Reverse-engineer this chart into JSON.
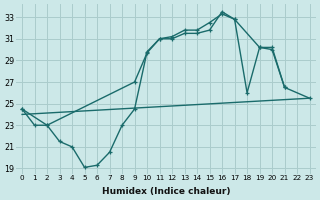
{
  "xlabel": "Humidex (Indice chaleur)",
  "background_color": "#cce8e8",
  "grid_color": "#aacccc",
  "line_color": "#1a6b6b",
  "xlim": [
    -0.5,
    23.5
  ],
  "ylim": [
    18.5,
    34.2
  ],
  "xticks": [
    0,
    1,
    2,
    3,
    4,
    5,
    6,
    7,
    8,
    9,
    10,
    11,
    12,
    13,
    14,
    15,
    16,
    17,
    18,
    19,
    20,
    21,
    22,
    23
  ],
  "yticks": [
    19,
    21,
    23,
    25,
    27,
    29,
    31,
    33
  ],
  "line1_x": [
    0,
    1,
    2,
    3,
    4,
    5,
    6,
    7,
    8,
    9,
    10,
    11,
    12,
    13,
    14,
    15,
    16,
    17,
    18,
    19,
    20,
    21
  ],
  "line1_y": [
    24.5,
    23.0,
    23.0,
    21.5,
    21.0,
    19.1,
    19.3,
    20.5,
    23.0,
    24.5,
    29.8,
    31.0,
    31.0,
    31.5,
    31.5,
    31.8,
    33.5,
    32.8,
    26.0,
    30.2,
    30.2,
    26.5
  ],
  "line2_x": [
    0,
    2,
    9,
    10,
    11,
    12,
    13,
    14,
    15,
    16,
    17,
    19,
    20,
    21,
    23
  ],
  "line2_y": [
    24.5,
    23.0,
    27.0,
    29.7,
    31.0,
    31.2,
    31.8,
    31.8,
    32.5,
    33.3,
    32.8,
    30.2,
    30.0,
    26.5,
    25.5
  ],
  "line3_x": [
    0,
    23
  ],
  "line3_y": [
    24.0,
    25.5
  ],
  "lw": 1.0,
  "ms": 3.5
}
